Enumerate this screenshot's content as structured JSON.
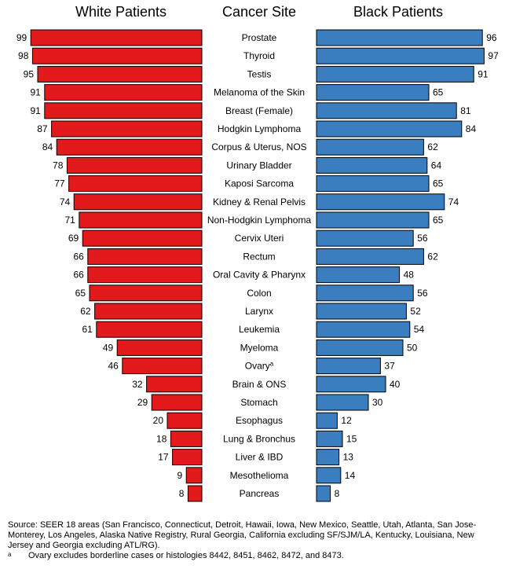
{
  "chart_data": {
    "type": "bar",
    "title_left": "White Patients",
    "title_center": "Cancer Site",
    "title_right": "Black Patients",
    "categories": [
      "Prostate",
      "Thyroid",
      "Testis",
      "Melanoma of the Skin",
      "Breast (Female)",
      "Hodgkin Lymphoma",
      "Corpus & Uterus, NOS",
      "Urinary Bladder",
      "Kaposi Sarcoma",
      "Kidney & Renal Pelvis",
      "Non-Hodgkin Lymphoma",
      "Cervix Uteri",
      "Rectum",
      "Oral Cavity & Pharynx",
      "Colon",
      "Larynx",
      "Leukemia",
      "Myeloma",
      "Ovary",
      "Brain & ONS",
      "Stomach",
      "Esophagus",
      "Lung & Bronchus",
      "Liver & IBD",
      "Mesothelioma",
      "Pancreas"
    ],
    "category_superscripts": {
      "Ovary": "a"
    },
    "series": [
      {
        "name": "White Patients",
        "color": "#e31a1c",
        "values": [
          99,
          98,
          95,
          91,
          91,
          87,
          84,
          78,
          77,
          74,
          71,
          69,
          66,
          66,
          65,
          62,
          61,
          49,
          46,
          32,
          29,
          20,
          18,
          17,
          9,
          8
        ]
      },
      {
        "name": "Black Patients",
        "color": "#3a7ec0",
        "values": [
          96,
          97,
          91,
          65,
          81,
          84,
          62,
          64,
          65,
          74,
          65,
          56,
          62,
          48,
          56,
          52,
          54,
          50,
          37,
          40,
          30,
          12,
          15,
          13,
          14,
          8
        ]
      }
    ],
    "xlim": [
      0,
      100
    ]
  },
  "footnotes": {
    "source": "Source: SEER 18 areas (San Francisco, Connecticut, Detroit, Hawaii, Iowa, New Mexico, Seattle, Utah, Atlanta, San Jose-Monterey, Los Angeles, Alaska Native Registry, Rural Georgia, California excluding SF/SJM/LA, Kentucky, Louisiana, New Jersey and Georgia excluding ATL/RG).",
    "note_marker": "a",
    "note": "Ovary excludes borderline cases or histologies 8442, 8451, 8462, 8472, and 8473."
  }
}
